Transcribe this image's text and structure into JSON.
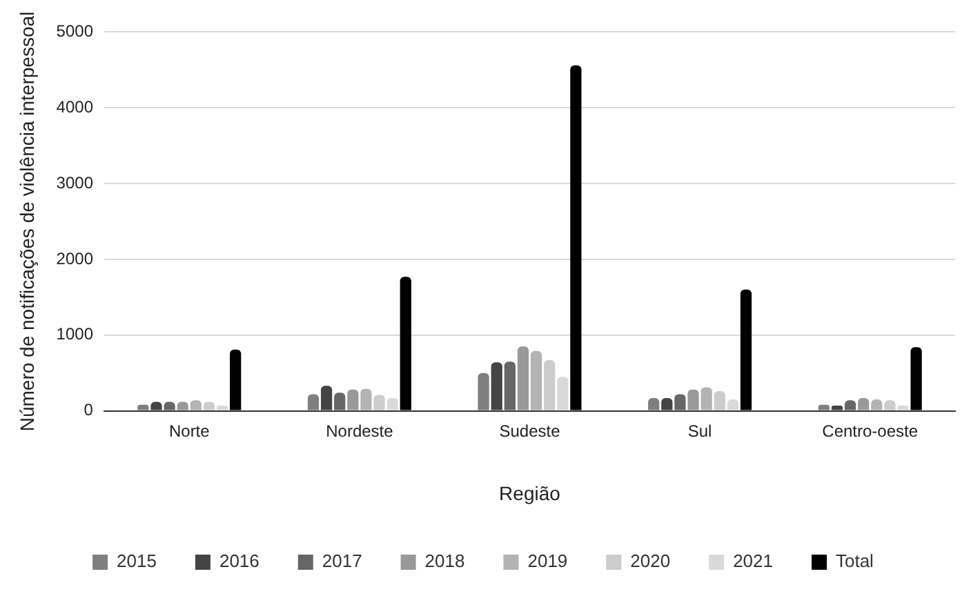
{
  "chart_data": {
    "type": "bar",
    "xlabel": "Região",
    "ylabel": "Número de notificações de violência interpessoal",
    "categories": [
      "Norte",
      "Nordeste",
      "Sudeste",
      "Sul",
      "Centro-oeste"
    ],
    "series": [
      {
        "name": "2015",
        "color": "#7f7f7f",
        "values": [
          80,
          220,
          500,
          170,
          80
        ]
      },
      {
        "name": "2016",
        "color": "#444444",
        "values": [
          120,
          330,
          640,
          170,
          70
        ]
      },
      {
        "name": "2017",
        "color": "#666666",
        "values": [
          120,
          240,
          650,
          220,
          140
        ]
      },
      {
        "name": "2018",
        "color": "#999999",
        "values": [
          120,
          280,
          850,
          280,
          170
        ]
      },
      {
        "name": "2019",
        "color": "#b3b3b3",
        "values": [
          140,
          290,
          790,
          310,
          150
        ]
      },
      {
        "name": "2020",
        "color": "#cccccc",
        "values": [
          120,
          210,
          670,
          260,
          140
        ]
      },
      {
        "name": "2021",
        "color": "#d9d9d9",
        "values": [
          70,
          170,
          450,
          150,
          70
        ]
      },
      {
        "name": "Total",
        "color": "#000000",
        "values": [
          810,
          1770,
          4560,
          1600,
          840
        ]
      }
    ],
    "ylim": [
      0,
      5000
    ],
    "yticks": [
      0,
      1000,
      2000,
      3000,
      4000,
      5000
    ],
    "grid": "y",
    "legend": "bottom"
  }
}
